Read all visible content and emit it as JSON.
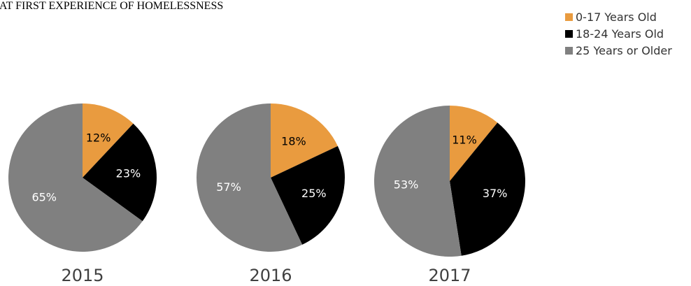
{
  "title": "E AT FIRST EXPERIENCE OF HOMELESSNESS",
  "legend": [
    {
      "label": "0-17 Years Old",
      "color": "#E99B3F"
    },
    {
      "label": "18-24 Years Old",
      "color": "#000000"
    },
    {
      "label": "25 Years or Older",
      "color": "#808080"
    }
  ],
  "chart_data": [
    {
      "type": "pie",
      "title": "2015",
      "categories": [
        "0-17 Years Old",
        "18-24 Years Old",
        "25 Years or Older"
      ],
      "values": [
        12,
        23,
        65
      ],
      "labels": [
        "12%",
        "23%",
        "65%"
      ]
    },
    {
      "type": "pie",
      "title": "2016",
      "categories": [
        "0-17 Years Old",
        "18-24 Years Old",
        "25 Years or Older"
      ],
      "values": [
        18,
        25,
        57
      ],
      "labels": [
        "18%",
        "25%",
        "57%"
      ]
    },
    {
      "type": "pie",
      "title": "2017",
      "categories": [
        "0-17 Years Old",
        "18-24 Years Old",
        "25 Years or Older"
      ],
      "values": [
        11,
        37,
        53
      ],
      "labels": [
        "11%",
        "37%",
        "53%"
      ]
    }
  ],
  "label_colors": [
    "#000000",
    "#ffffff",
    "#ffffff"
  ]
}
